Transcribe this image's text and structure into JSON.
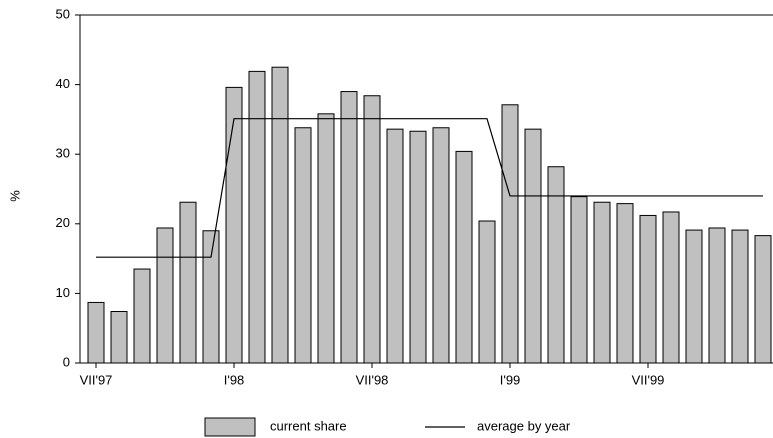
{
  "chart_data": {
    "type": "bar",
    "categories": [
      "VII'97",
      null,
      null,
      null,
      null,
      null,
      "I'98",
      null,
      null,
      null,
      null,
      null,
      "VII'98",
      null,
      null,
      null,
      null,
      null,
      "I'99",
      null,
      null,
      null,
      null,
      null,
      "VII'99",
      null,
      null,
      null,
      null,
      null
    ],
    "series": [
      {
        "name": "current share",
        "type": "bar",
        "color": "#c0c0c0",
        "values": [
          8.7,
          7.4,
          13.5,
          19.4,
          23.1,
          19.0,
          39.6,
          41.9,
          42.5,
          33.8,
          35.8,
          39.0,
          38.4,
          33.6,
          33.3,
          33.8,
          30.4,
          20.4,
          37.1,
          33.6,
          28.2,
          23.9,
          23.1,
          22.9,
          21.2,
          21.7,
          19.1,
          19.4,
          19.1,
          18.3
        ]
      },
      {
        "name": "average by year",
        "type": "line",
        "color": "#000000",
        "values": [
          15.2,
          15.2,
          15.2,
          15.2,
          15.2,
          15.2,
          35.1,
          35.1,
          35.1,
          35.1,
          35.1,
          35.1,
          35.1,
          35.1,
          35.1,
          35.1,
          35.1,
          35.1,
          24.0,
          24.0,
          24.0,
          24.0,
          24.0,
          24.0,
          24.0,
          24.0,
          24.0,
          24.0,
          24.0,
          24.0
        ]
      }
    ],
    "y_label": "%",
    "ylim": [
      0,
      50
    ],
    "yticks": [
      0,
      10,
      20,
      30,
      40,
      50
    ],
    "grid": false
  }
}
